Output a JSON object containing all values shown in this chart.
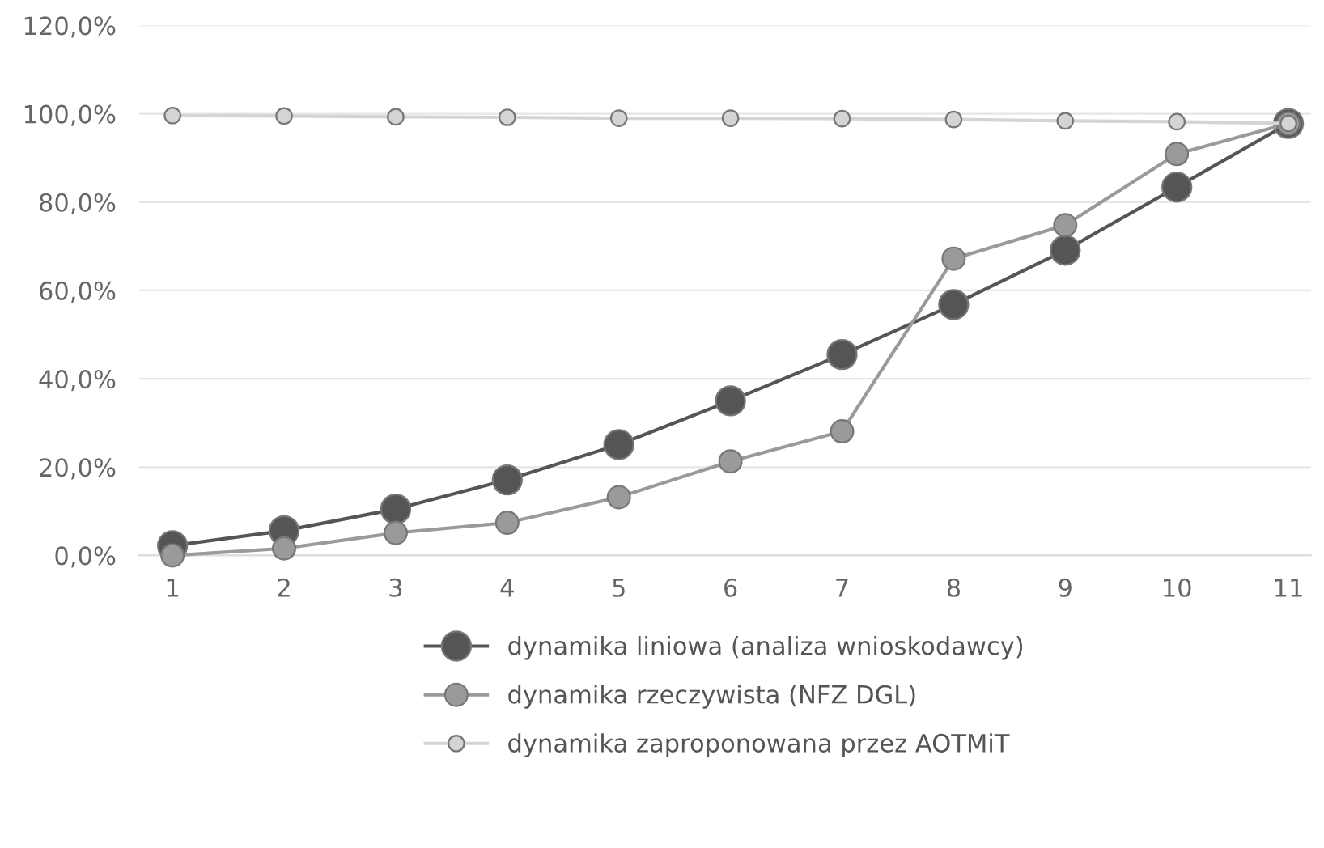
{
  "chart_data": {
    "type": "line",
    "categories": [
      "1",
      "2",
      "3",
      "4",
      "5",
      "6",
      "7",
      "8",
      "9",
      "10",
      "11"
    ],
    "series": [
      {
        "name": "dynamika liniowa (analiza wnioskodawcy)",
        "color": "#555555",
        "values": [
          2.2,
          5.6,
          10.5,
          17.1,
          25.1,
          35.0,
          45.5,
          56.8,
          69.1,
          83.4,
          97.8
        ]
      },
      {
        "name": "dynamika rzeczywista (NFZ DGL)",
        "color": "#9a9a9a",
        "values": [
          0.0,
          1.6,
          5.1,
          7.4,
          13.2,
          21.3,
          28.1,
          67.2,
          74.8,
          90.9,
          97.8
        ]
      },
      {
        "name": "dynamika zaproponowana przez AOTMiT",
        "color": "#d4d4d4",
        "values": [
          99.6,
          99.5,
          99.3,
          99.2,
          99.0,
          99.0,
          98.9,
          98.7,
          98.4,
          98.2,
          97.8
        ]
      }
    ],
    "ylim": [
      0,
      120
    ],
    "yticks": [
      {
        "value": 0,
        "label": "0,0%"
      },
      {
        "value": 20,
        "label": "20,0%"
      },
      {
        "value": 40,
        "label": "40,0%"
      },
      {
        "value": 60,
        "label": "60,0%"
      },
      {
        "value": 80,
        "label": "80,0%"
      },
      {
        "value": 100,
        "label": "100,0%"
      },
      {
        "value": 120,
        "label": "120,0%"
      }
    ],
    "grid": "y",
    "legend": "bottom",
    "marker": "circle",
    "line_style": "solid"
  }
}
